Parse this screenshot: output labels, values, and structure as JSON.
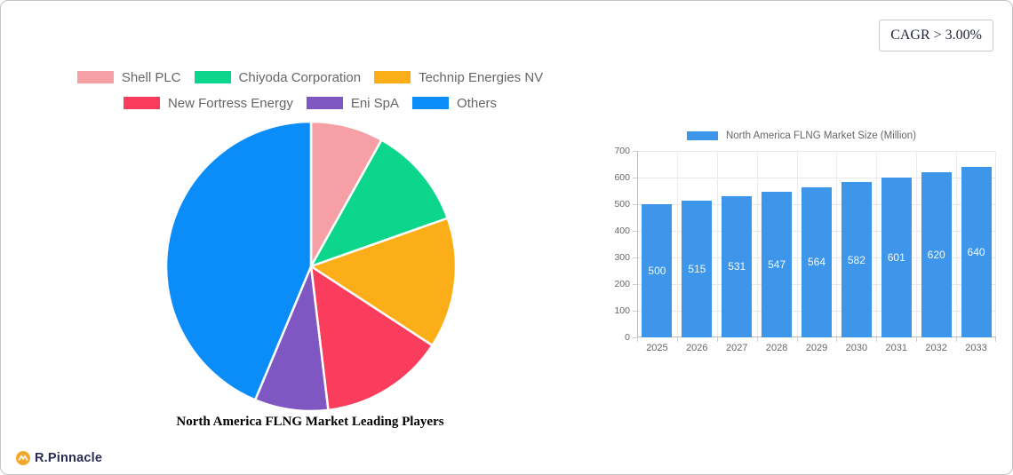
{
  "header": {
    "cagr_label": "CAGR > 3.00%"
  },
  "footer": {
    "brand_name": "R.Pinnacle"
  },
  "colors": {
    "legend_text": "#666666",
    "axis_text": "#666666",
    "grid_h": "#e8e8e8",
    "grid_v": "#ececec",
    "axis_border": "#bdbdbd",
    "card_border": "#c3c3c3",
    "cagr_text": "#1f2337",
    "brand_text": "#2b2b52",
    "brand_icon": "#f2a72e",
    "pie_title_text": "#000000",
    "bar_value_label": "#ffffff"
  },
  "chart_data": [
    {
      "type": "pie",
      "title": "North America FLNG Market Leading Players",
      "legend_position": "top",
      "labels": [
        "Shell PLC",
        "Chiyoda Corporation",
        "Technip Energies NV",
        "New Fortress Energy",
        "Eni SpA",
        "Others"
      ],
      "values": [
        8.1,
        11.5,
        14.6,
        13.9,
        8.2,
        43.7
      ],
      "unit": "percent-share-estimated-from-arc-angles",
      "colors": [
        "#f6a0a6",
        "#0bd68b",
        "#fbae17",
        "#fb3d5d",
        "#7e57c2",
        "#0a8df8"
      ],
      "start_angle_deg": 0,
      "slice_gap_color": "#ffffff",
      "legend_rows": [
        3,
        3
      ]
    },
    {
      "type": "bar",
      "legend_label": "North America FLNG Market Size (Million)",
      "categories": [
        "2025",
        "2026",
        "2027",
        "2028",
        "2029",
        "2030",
        "2031",
        "2032",
        "2033"
      ],
      "values": [
        500,
        515,
        531,
        547,
        564,
        582,
        601,
        620,
        640
      ],
      "bar_color": "#3d96e9",
      "ylim": [
        0,
        700
      ],
      "yticks": [
        0,
        100,
        200,
        300,
        400,
        500,
        600,
        700
      ],
      "grid": true,
      "value_labels": "inside-center",
      "legend_position": "top"
    }
  ]
}
